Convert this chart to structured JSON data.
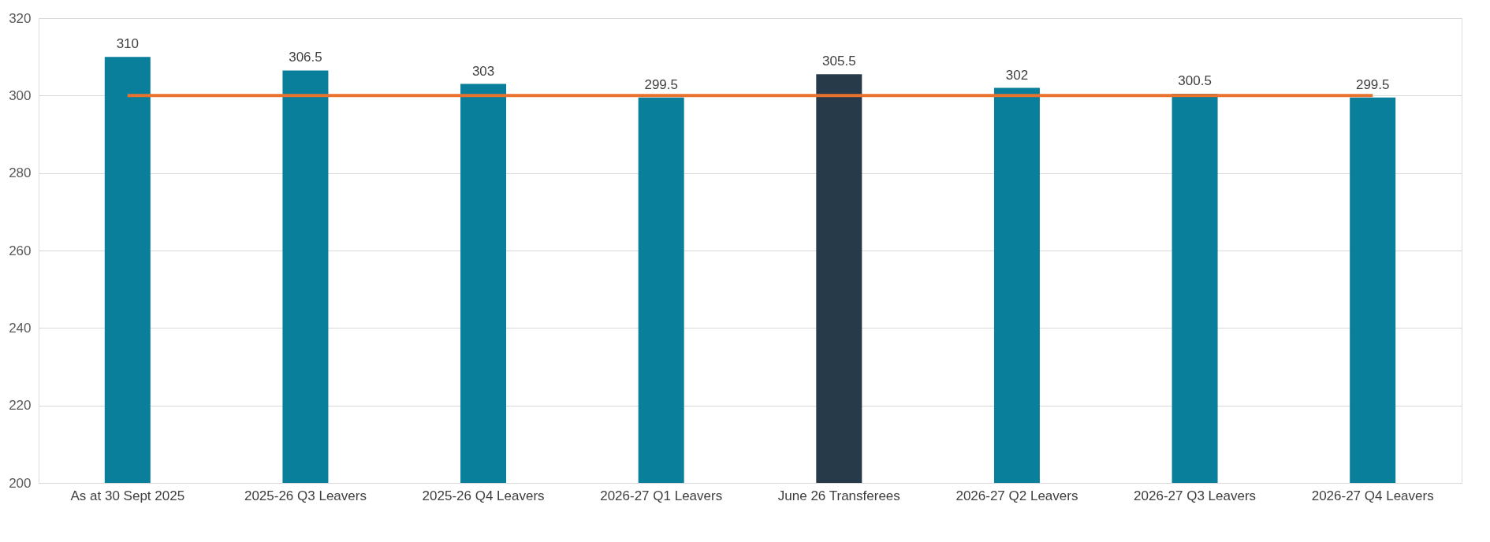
{
  "chart_data": {
    "type": "bar",
    "categories": [
      "As at 30 Sept 2025",
      "2025-26 Q3 Leavers",
      "2025-26 Q4 Leavers",
      "2026-27 Q1 Leavers",
      "June 26 Transferees",
      "2026-27 Q2 Leavers",
      "2026-27 Q3 Leavers",
      "2026-27 Q4 Leavers"
    ],
    "series": [
      {
        "colors": [
          "#0a7f9c",
          "#0a7f9c",
          "#0a7f9c",
          "#0a7f9c",
          "#263a4a",
          "#0a7f9c",
          "#0a7f9c",
          "#0a7f9c"
        ],
        "values": [
          310,
          306.5,
          303,
          299.5,
          305.5,
          302,
          300.5,
          299.5
        ],
        "value_labels": [
          "310",
          "306.5",
          "303",
          "299.5",
          "305.5",
          "302",
          "300.5",
          "299.5"
        ]
      },
      {
        "type": "line",
        "color": "#e8722e",
        "values": [
          300,
          300,
          300,
          300,
          300,
          300,
          300,
          300
        ]
      }
    ],
    "ylim": [
      200,
      320
    ],
    "yticks": [
      200,
      220,
      240,
      260,
      280,
      300,
      320
    ],
    "grid": "y"
  }
}
